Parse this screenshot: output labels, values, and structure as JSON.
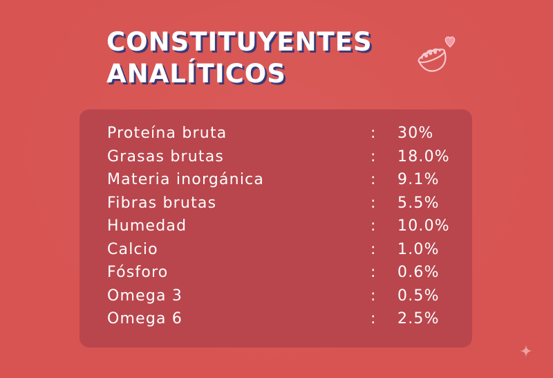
{
  "title": {
    "line1": "CONSTITUYENTES",
    "line2": "ANALÍTICOS"
  },
  "decoration": {
    "icon": "pet-food-bowl-icon",
    "heart_icon": "heart-icon",
    "sparkle_icon": "sparkle-icon",
    "colors": {
      "background": "#d75452",
      "panel": "#b9464d",
      "title_shadow": "#3b3a78",
      "heart": "#f39aa6",
      "bowl_outline": "#f6c9cf"
    }
  },
  "constituents": [
    {
      "label": "Proteína bruta",
      "separator": ":",
      "value": "30%"
    },
    {
      "label": "Grasas brutas",
      "separator": ":",
      "value": "18.0%"
    },
    {
      "label": "Materia inorgánica",
      "separator": ":",
      "value": "9.1%"
    },
    {
      "label": "Fibras brutas",
      "separator": ":",
      "value": "5.5%"
    },
    {
      "label": "Humedad",
      "separator": ":",
      "value": "10.0%"
    },
    {
      "label": "Calcio",
      "separator": ":",
      "value": "1.0%"
    },
    {
      "label": "Fósforo",
      "separator": ":",
      "value": "0.6%"
    },
    {
      "label": "Omega 3",
      "separator": ":",
      "value": "0.5%"
    },
    {
      "label": "Omega 6",
      "separator": ":",
      "value": "2.5%"
    }
  ]
}
